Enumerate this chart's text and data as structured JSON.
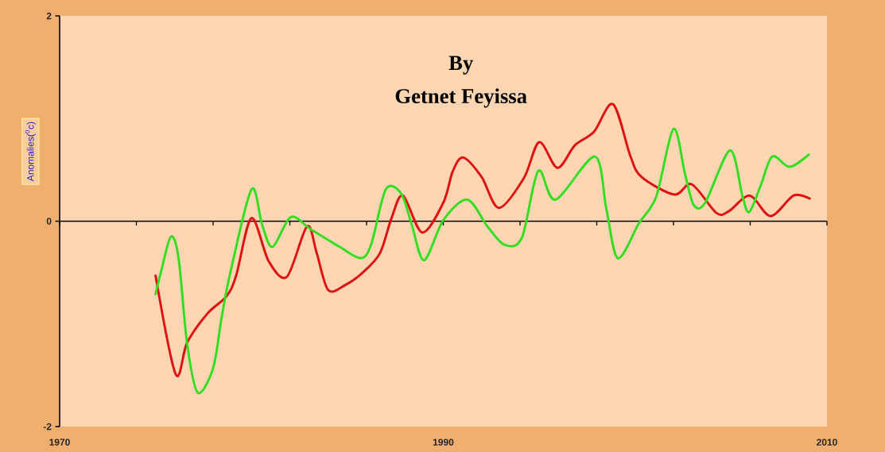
{
  "chart_data": {
    "type": "line",
    "title": "By",
    "subtitle": "Getnet Feyissa",
    "ylabel": "Anomalies($^{0}$c)",
    "xlim": [
      1970,
      2010
    ],
    "ylim": [
      -2,
      2
    ],
    "xticks": [
      1970,
      {
        "value": 1974,
        "label": null
      },
      {
        "value": 1978,
        "label": null
      },
      {
        "value": 1982,
        "label": null
      },
      {
        "value": 1986,
        "label": null
      },
      1990,
      {
        "value": 1994,
        "label": null
      },
      {
        "value": 1998,
        "label": null
      },
      {
        "value": 2002,
        "label": null
      },
      {
        "value": 2006,
        "label": null
      },
      2010
    ],
    "yticks": [
      -2,
      0,
      2
    ],
    "ref_lines": [
      {
        "axis": "y",
        "value": 0,
        "color": "#000000",
        "line_style": "solid"
      }
    ],
    "grid": false,
    "legend": false,
    "marker": "none",
    "line_style": "solid",
    "series": [
      {
        "color": "#e01010",
        "x": [
          1975.0,
          1976.05,
          1976.65,
          1977.7,
          1978.7,
          1979.2,
          1980.0,
          1980.9,
          1981.85,
          1982.9,
          1983.4,
          1984.0,
          1984.9,
          1985.8,
          1986.7,
          1987.3,
          1987.9,
          1988.9,
          1990.0,
          1990.5,
          1991.05,
          1992.0,
          1992.9,
          1994.2,
          1995.0,
          1995.95,
          1996.86,
          1997.85,
          1998.85,
          1999.76,
          2000.34,
          2002.04,
          2002.95,
          2004.24,
          2004.9,
          2005.98,
          2007.06,
          2008.26,
          2009.1
        ],
        "values": [
          -0.53,
          -1.49,
          -1.18,
          -0.9,
          -0.73,
          -0.53,
          0.03,
          -0.39,
          -0.54,
          -0.05,
          -0.31,
          -0.67,
          -0.62,
          -0.5,
          -0.31,
          0.03,
          0.25,
          -0.11,
          0.18,
          0.49,
          0.62,
          0.43,
          0.13,
          0.42,
          0.77,
          0.52,
          0.74,
          0.87,
          1.14,
          0.63,
          0.43,
          0.26,
          0.36,
          0.08,
          0.1,
          0.25,
          0.05,
          0.25,
          0.22
        ]
      },
      {
        "color": "#33dd22",
        "x": [
          1975.0,
          1975.3,
          1975.8,
          1976.2,
          1976.65,
          1977.2,
          1978.0,
          1978.45,
          1978.9,
          1980.0,
          1980.55,
          1981.1,
          1982.05,
          1983.1,
          1984.6,
          1985.7,
          1986.25,
          1987.0,
          1987.8,
          1988.35,
          1989.0,
          1990.0,
          1991.25,
          1992.3,
          1993.2,
          1994.1,
          1994.95,
          1995.85,
          1997.9,
          1998.5,
          1999.1,
          2000.2,
          2001.1,
          2002.0,
          2002.6,
          2003.05,
          2003.65,
          2004.95,
          2005.6,
          2005.95,
          2006.55,
          2007.15,
          2008.05,
          2009.05
        ],
        "values": [
          -0.71,
          -0.48,
          -0.15,
          -0.36,
          -1.2,
          -1.67,
          -1.43,
          -0.93,
          -0.5,
          0.31,
          -0.03,
          -0.25,
          0.04,
          -0.08,
          -0.25,
          -0.36,
          -0.22,
          0.31,
          0.27,
          -0.03,
          -0.38,
          0.01,
          0.21,
          -0.05,
          -0.23,
          -0.16,
          0.49,
          0.21,
          0.63,
          0.12,
          -0.36,
          -0.02,
          0.24,
          0.9,
          0.46,
          0.16,
          0.18,
          0.69,
          0.24,
          0.09,
          0.35,
          0.63,
          0.53,
          0.65
        ]
      }
    ]
  }
}
